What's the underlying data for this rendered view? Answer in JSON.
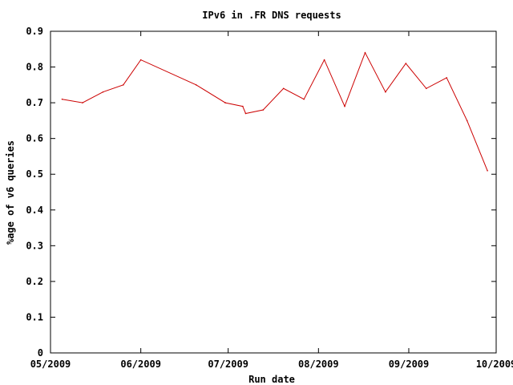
{
  "chart_data": {
    "type": "line",
    "title": "IPv6 in .FR DNS requests",
    "xlabel": "Run date",
    "ylabel": "%age of v6 queries",
    "ylim": [
      0,
      0.9
    ],
    "yticks": [
      "0",
      "0.1",
      "0.2",
      "0.3",
      "0.4",
      "0.5",
      "0.6",
      "0.7",
      "0.8",
      "0.9"
    ],
    "xlim": [
      "2009-05-01",
      "2009-10-01"
    ],
    "xticks": [
      {
        "date": "2009-05-01",
        "label": "05/2009"
      },
      {
        "date": "2009-06-01",
        "label": "06/2009"
      },
      {
        "date": "2009-07-01",
        "label": "07/2009"
      },
      {
        "date": "2009-08-01",
        "label": "08/2009"
      },
      {
        "date": "2009-09-01",
        "label": "09/2009"
      },
      {
        "date": "2009-10-01",
        "label": "10/2009"
      }
    ],
    "grid": false,
    "legend": "none",
    "series": [
      {
        "color": "#cc0000",
        "points": [
          {
            "x": "2009-05-05",
            "y": 0.71
          },
          {
            "x": "2009-05-12",
            "y": 0.7
          },
          {
            "x": "2009-05-19",
            "y": 0.73
          },
          {
            "x": "2009-05-26",
            "y": 0.75
          },
          {
            "x": "2009-06-01",
            "y": 0.82
          },
          {
            "x": "2009-06-20",
            "y": 0.75
          },
          {
            "x": "2009-06-30",
            "y": 0.7
          },
          {
            "x": "2009-07-06",
            "y": 0.69
          },
          {
            "x": "2009-07-07",
            "y": 0.67
          },
          {
            "x": "2009-07-13",
            "y": 0.68
          },
          {
            "x": "2009-07-20",
            "y": 0.74
          },
          {
            "x": "2009-07-27",
            "y": 0.71
          },
          {
            "x": "2009-08-03",
            "y": 0.82
          },
          {
            "x": "2009-08-10",
            "y": 0.69
          },
          {
            "x": "2009-08-17",
            "y": 0.84
          },
          {
            "x": "2009-08-24",
            "y": 0.73
          },
          {
            "x": "2009-08-31",
            "y": 0.81
          },
          {
            "x": "2009-09-07",
            "y": 0.74
          },
          {
            "x": "2009-09-14",
            "y": 0.77
          },
          {
            "x": "2009-09-21",
            "y": 0.65
          },
          {
            "x": "2009-09-28",
            "y": 0.51
          }
        ]
      }
    ]
  }
}
